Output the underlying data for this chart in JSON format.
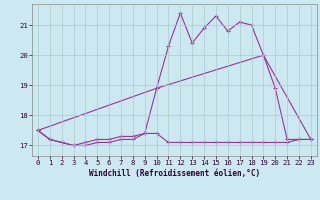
{
  "xlabel": "Windchill (Refroidissement éolien,°C)",
  "bg_color": "#cce8f0",
  "line_color": "#993399",
  "grid_color": "#aacccc",
  "x_ticks": [
    0,
    1,
    2,
    3,
    4,
    5,
    6,
    7,
    8,
    9,
    10,
    11,
    12,
    13,
    14,
    15,
    16,
    17,
    18,
    19,
    20,
    21,
    22,
    23
  ],
  "y_ticks": [
    17,
    18,
    19,
    20,
    21
  ],
  "ylim": [
    16.65,
    21.7
  ],
  "xlim": [
    -0.5,
    23.5
  ],
  "line1_x": [
    0,
    1,
    2,
    3,
    4,
    5,
    6,
    7,
    8,
    9,
    10,
    11,
    12,
    13,
    14,
    15,
    16,
    17,
    18,
    19,
    20,
    21,
    22,
    23
  ],
  "line1_y": [
    17.5,
    17.2,
    17.1,
    17.0,
    17.0,
    17.1,
    17.1,
    17.2,
    17.2,
    17.4,
    17.4,
    17.1,
    17.1,
    17.1,
    17.1,
    17.1,
    17.1,
    17.1,
    17.1,
    17.1,
    17.1,
    17.1,
    17.2,
    17.2
  ],
  "line2_x": [
    0,
    1,
    2,
    3,
    4,
    5,
    6,
    7,
    8,
    9,
    10,
    11,
    12,
    13,
    14,
    15,
    16,
    17,
    18,
    19,
    20,
    21,
    22,
    23
  ],
  "line2_y": [
    17.5,
    17.2,
    17.1,
    17.0,
    17.1,
    17.2,
    17.2,
    17.3,
    17.3,
    17.4,
    18.9,
    20.3,
    21.4,
    20.4,
    20.9,
    21.3,
    20.8,
    21.1,
    21.0,
    20.0,
    18.9,
    17.2,
    17.2,
    17.2
  ],
  "line3_x": [
    0,
    10,
    19,
    23
  ],
  "line3_y": [
    17.5,
    18.9,
    20.0,
    17.2
  ],
  "tick_color": "#330033",
  "label_fontsize": 5.5,
  "tick_fontsize": 5.2
}
